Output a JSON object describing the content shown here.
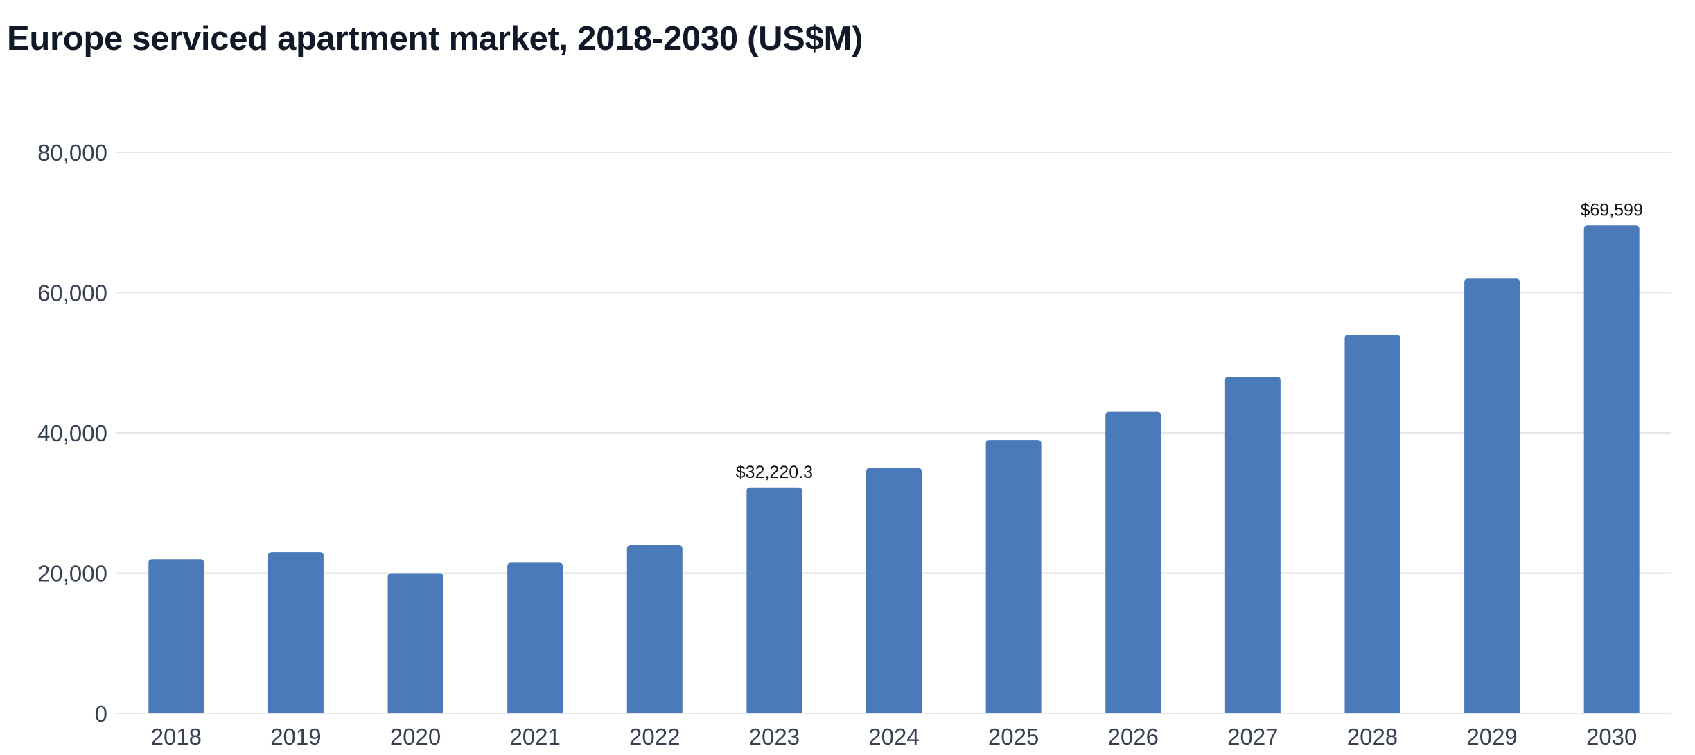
{
  "chart_data": {
    "type": "bar",
    "title": "Europe serviced apartment market, 2018-2030 (US$M)",
    "xlabel": "",
    "ylabel": "",
    "categories": [
      "2018",
      "2019",
      "2020",
      "2021",
      "2022",
      "2023",
      "2024",
      "2025",
      "2026",
      "2027",
      "2028",
      "2029",
      "2030"
    ],
    "series": [
      {
        "name": "Europe serviced apartment market (US$M)",
        "values": [
          22000,
          23000,
          20000,
          21500,
          24000,
          32220.3,
          35000,
          39000,
          43000,
          48000,
          54000,
          62000,
          69599
        ]
      }
    ],
    "ylim": [
      0,
      80000
    ],
    "yticks": [
      0,
      20000,
      40000,
      60000,
      80000
    ],
    "ytick_labels": [
      "0",
      "20,000",
      "40,000",
      "60,000",
      "80,000"
    ],
    "grid": true,
    "legend": "none",
    "bar_color": "#4a7aba",
    "annotations": [
      {
        "category": "2023",
        "text": "$32,220.3"
      },
      {
        "category": "2030",
        "text": "$69,599"
      }
    ]
  }
}
